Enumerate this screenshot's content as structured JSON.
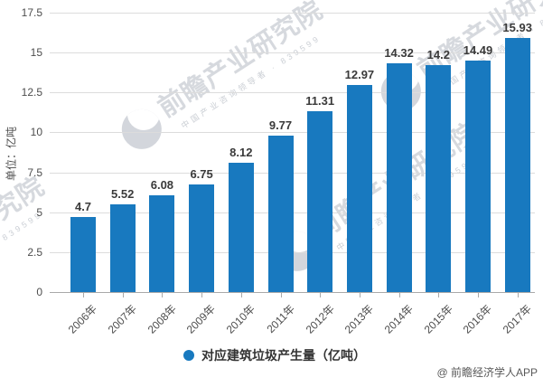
{
  "chart_data": {
    "type": "bar",
    "title": "",
    "categories": [
      "2006年",
      "2007年",
      "2008年",
      "2009年",
      "2010年",
      "2011年",
      "2012年",
      "2013年",
      "2014年",
      "2015年",
      "2016年",
      "2017年"
    ],
    "series": [
      {
        "name": "对应建筑垃圾产生量（亿吨）",
        "values": [
          4.7,
          5.52,
          6.08,
          6.75,
          8.12,
          9.77,
          11.31,
          12.97,
          14.32,
          14.2,
          14.49,
          15.93
        ],
        "value_labels": [
          "4.7",
          "5.52",
          "6.08",
          "6.75",
          "8.12",
          "9.77",
          "11.31",
          "12.97",
          "14.32",
          "14.2",
          "14.49",
          "15.93"
        ]
      }
    ],
    "xlabel": "",
    "ylabel": "单位：亿吨",
    "ylim": [
      0,
      17.5
    ],
    "yticks": [
      0,
      2.5,
      5,
      7.5,
      10,
      12.5,
      15,
      17.5
    ],
    "ytick_labels": [
      "0",
      "2.5",
      "5",
      "7.5",
      "10",
      "12.5",
      "15",
      "17.5"
    ],
    "grid": true,
    "legend_position": "bottom",
    "bar_color": "#1879BF"
  },
  "legend": {
    "label": "对应建筑垃圾产生量（亿吨）",
    "marker_color": "#1879BF"
  },
  "watermark": {
    "big": "前瞻产业研究院",
    "small": "中国产业咨询领导者 · 839599"
  },
  "footer": {
    "credit": "@ 前瞻经济学人APP"
  },
  "colors": {
    "bar": "#1879BF",
    "gridline": "#dcdcdc",
    "axis": "#a9a9a9",
    "tick_text": "#4d4d4d",
    "value_text": "#3a3a3a",
    "credit_text": "#595959"
  }
}
